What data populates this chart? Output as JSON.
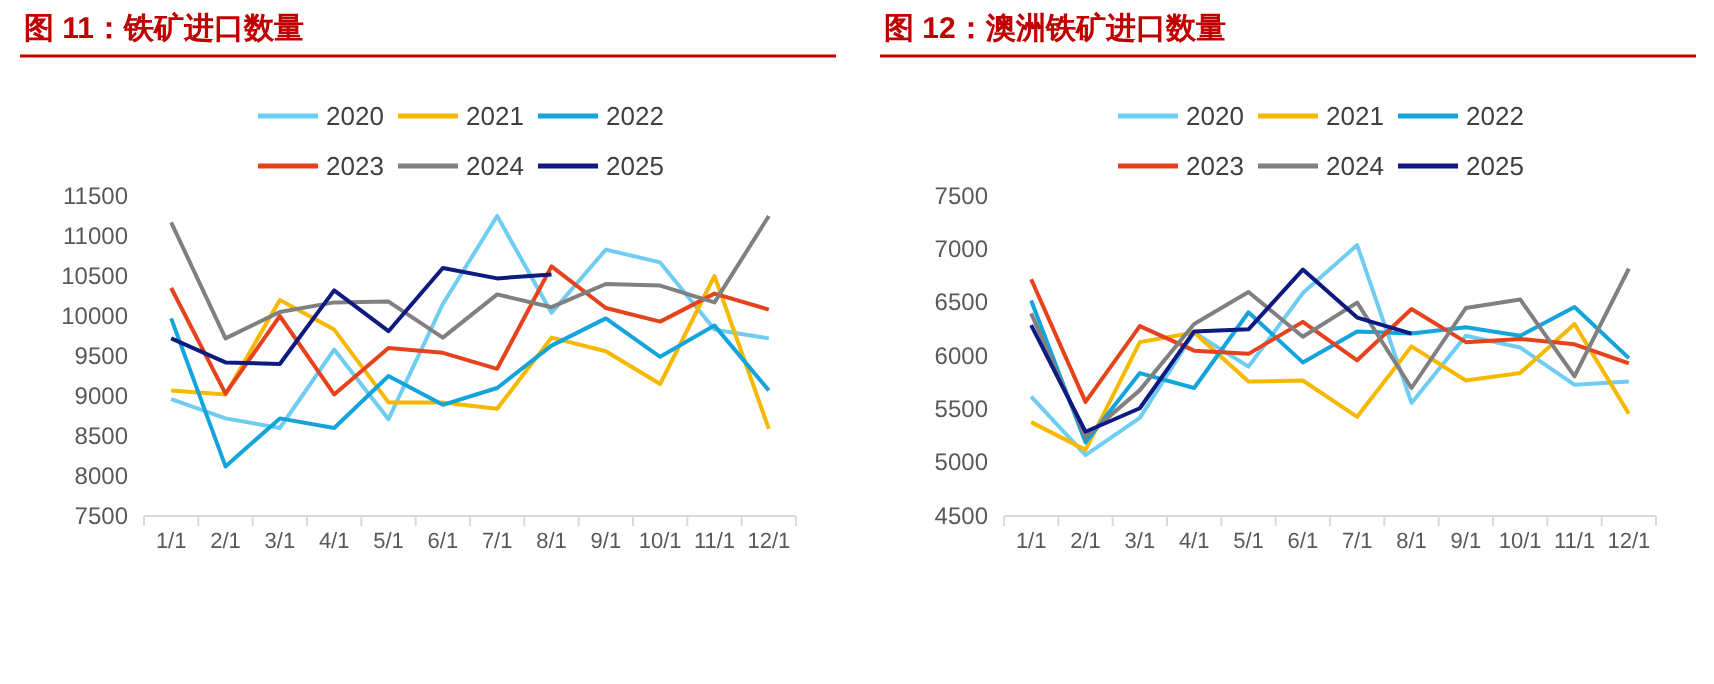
{
  "chart_data": [
    {
      "type": "line",
      "title": "图 11：铁矿进口数量",
      "categories": [
        "1/1",
        "2/1",
        "3/1",
        "4/1",
        "5/1",
        "6/1",
        "7/1",
        "8/1",
        "9/1",
        "10/1",
        "11/1",
        "12/1"
      ],
      "ylim": [
        7500,
        11500
      ],
      "yticks": [
        7500,
        8000,
        8500,
        9000,
        9500,
        10000,
        10500,
        11000,
        11500
      ],
      "legend": "top",
      "grid": false,
      "series": [
        {
          "name": "2020",
          "color": "#6fcdf2",
          "values": [
            8960,
            8720,
            8600,
            9580,
            8710,
            10150,
            11250,
            10040,
            10830,
            10670,
            9830,
            9720
          ]
        },
        {
          "name": "2021",
          "color": "#f6b800",
          "values": [
            9070,
            9020,
            10200,
            9830,
            8920,
            8920,
            8840,
            9730,
            9560,
            9150,
            10500,
            8590
          ]
        },
        {
          "name": "2022",
          "color": "#13a4dc",
          "values": [
            9970,
            8120,
            8720,
            8600,
            9250,
            8890,
            9100,
            9630,
            9970,
            9490,
            9880,
            9070
          ]
        },
        {
          "name": "2023",
          "color": "#e6421c",
          "values": [
            10350,
            9030,
            10000,
            9020,
            9600,
            9540,
            9340,
            10620,
            10100,
            9930,
            10280,
            10080
          ]
        },
        {
          "name": "2024",
          "color": "#808080",
          "values": [
            11170,
            9720,
            10050,
            10170,
            10180,
            9730,
            10270,
            10110,
            10400,
            10380,
            10170,
            11250
          ]
        },
        {
          "name": "2025",
          "color": "#0d1a80",
          "values": [
            9720,
            9420,
            9400,
            10320,
            9810,
            10600,
            10470,
            10520,
            null,
            null,
            null,
            null
          ]
        }
      ]
    },
    {
      "type": "line",
      "title": "图 12：澳洲铁矿进口数量",
      "categories": [
        "1/1",
        "2/1",
        "3/1",
        "4/1",
        "5/1",
        "6/1",
        "7/1",
        "8/1",
        "9/1",
        "10/1",
        "11/1",
        "12/1"
      ],
      "ylim": [
        4500,
        7500
      ],
      "yticks": [
        4500,
        5000,
        5500,
        6000,
        6500,
        7000,
        7500
      ],
      "legend": "top",
      "grid": false,
      "series": [
        {
          "name": "2020",
          "color": "#6fcdf2",
          "values": [
            5620,
            5070,
            5420,
            6220,
            5900,
            6590,
            7040,
            5560,
            6190,
            6080,
            5730,
            5760
          ]
        },
        {
          "name": "2021",
          "color": "#f6b800",
          "values": [
            5380,
            5120,
            6130,
            6220,
            5760,
            5770,
            5430,
            6090,
            5770,
            5840,
            6300,
            5460
          ]
        },
        {
          "name": "2022",
          "color": "#13a4dc",
          "values": [
            6520,
            5190,
            5840,
            5700,
            6410,
            5940,
            6230,
            6210,
            6270,
            6190,
            6460,
            5980
          ]
        },
        {
          "name": "2023",
          "color": "#e6421c",
          "values": [
            6720,
            5570,
            6280,
            6050,
            6020,
            6320,
            5960,
            6440,
            6130,
            6160,
            6110,
            5930
          ]
        },
        {
          "name": "2024",
          "color": "#808080",
          "values": [
            6400,
            5240,
            5680,
            6300,
            6600,
            6180,
            6500,
            5700,
            6450,
            6530,
            5810,
            6820
          ]
        },
        {
          "name": "2025",
          "color": "#0d1a80",
          "values": [
            6290,
            5290,
            5510,
            6230,
            6250,
            6810,
            6360,
            6210,
            null,
            null,
            null,
            null
          ]
        }
      ]
    }
  ]
}
